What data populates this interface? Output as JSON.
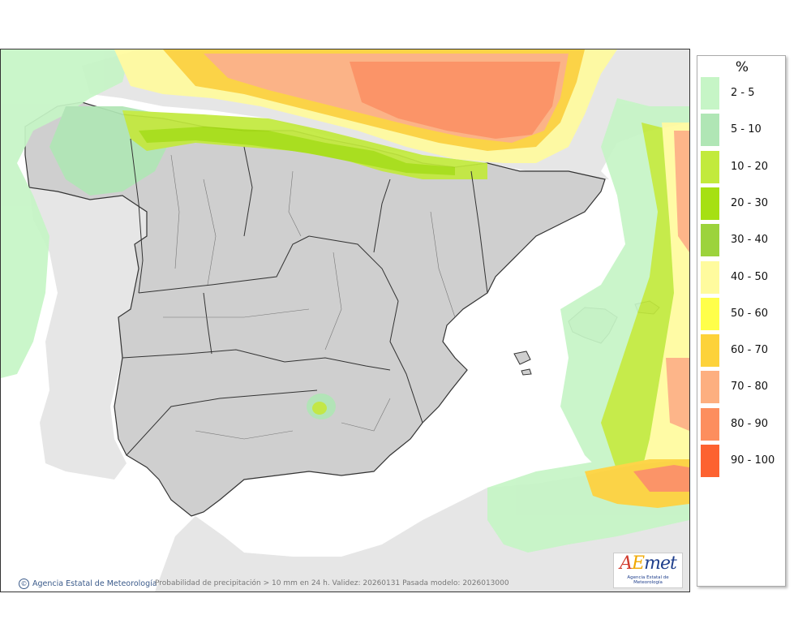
{
  "map": {
    "region": "Peninsula Iberica y Baleares",
    "colors": {
      "sea": "#ffffff",
      "outside_land": "#e6e6e6",
      "spain_land": "#cfcfcf",
      "borders": "#333333"
    }
  },
  "legend": {
    "title": "%",
    "items": [
      {
        "label": "2 - 5",
        "color": "#c6f5c6"
      },
      {
        "label": "5 - 10",
        "color": "#b0e6b5"
      },
      {
        "label": "10 - 20",
        "color": "#c2ea3c"
      },
      {
        "label": "20 - 30",
        "color": "#a6e012"
      },
      {
        "label": "30 - 40",
        "color": "#9cd33c"
      },
      {
        "label": "40 - 50",
        "color": "#fffb9e"
      },
      {
        "label": "50 - 60",
        "color": "#ffff4a"
      },
      {
        "label": "60 - 70",
        "color": "#fdd23a"
      },
      {
        "label": "70 - 80",
        "color": "#fdaf80"
      },
      {
        "label": "80 - 90",
        "color": "#fd8e5e"
      },
      {
        "label": "90 - 100",
        "color": "#fd6230"
      }
    ]
  },
  "footer": {
    "credit_icon": "copyright-icon",
    "credit": "Agencia Estatal de Meteorología",
    "caption": "Probabilidad de precipitación > 10 mm en 24 h. Validez: 20260131 Pasada modelo: 2026013000"
  },
  "logo": {
    "letters": [
      "A",
      "E",
      "met"
    ],
    "subtitle": "Agencia Estatal de Meteorología"
  }
}
